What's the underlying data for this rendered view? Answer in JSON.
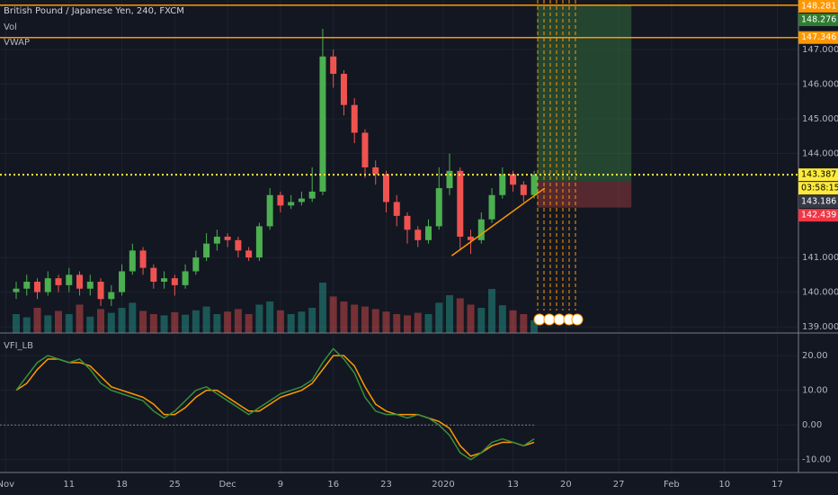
{
  "chart_data": {
    "type": "candlestick",
    "title": "British Pound / Japanese Yen, 240, FXCM",
    "overlays": [
      "Vol",
      "VWAP"
    ],
    "open": [
      140.0,
      140.1,
      140.3,
      140.0,
      140.4,
      140.2,
      140.5,
      140.1,
      140.3,
      139.8,
      140.0,
      140.6,
      141.2,
      140.7,
      140.3,
      140.4,
      140.2,
      140.6,
      141.0,
      141.4,
      141.6,
      141.5,
      141.2,
      141.0,
      141.9,
      142.8,
      142.5,
      142.6,
      142.7,
      142.9,
      146.8,
      146.3,
      145.4,
      144.6,
      143.6,
      143.4,
      142.6,
      142.2,
      141.8,
      141.5,
      141.9,
      143.0,
      143.5,
      141.6,
      141.5,
      142.1,
      142.8,
      143.4,
      143.1,
      142.8
    ],
    "high": [
      140.3,
      140.5,
      140.4,
      140.6,
      140.5,
      140.7,
      140.6,
      140.5,
      140.4,
      140.2,
      140.8,
      141.4,
      141.3,
      140.8,
      140.6,
      140.5,
      140.8,
      141.2,
      141.7,
      141.8,
      141.7,
      141.6,
      141.3,
      142.0,
      143.0,
      142.9,
      142.8,
      142.9,
      143.6,
      147.6,
      147.0,
      146.4,
      145.6,
      144.7,
      143.8,
      143.5,
      142.8,
      142.3,
      141.9,
      142.1,
      143.6,
      144.0,
      143.6,
      141.8,
      142.3,
      143.0,
      143.6,
      143.5,
      143.2,
      143.5
    ],
    "low": [
      139.8,
      139.9,
      139.8,
      139.9,
      140.0,
      140.0,
      139.9,
      139.9,
      139.6,
      139.6,
      139.9,
      140.5,
      140.5,
      140.1,
      140.1,
      139.9,
      140.1,
      140.5,
      140.9,
      141.2,
      141.3,
      141.0,
      140.9,
      140.9,
      141.8,
      142.3,
      142.4,
      142.5,
      142.6,
      142.8,
      145.9,
      145.1,
      144.3,
      143.3,
      143.1,
      142.3,
      141.9,
      141.4,
      141.3,
      141.4,
      141.8,
      142.8,
      141.2,
      141.1,
      141.4,
      142.0,
      142.7,
      142.9,
      142.6,
      142.7
    ],
    "close": [
      140.1,
      140.3,
      140.0,
      140.4,
      140.2,
      140.5,
      140.1,
      140.3,
      139.8,
      140.0,
      140.6,
      141.2,
      140.7,
      140.3,
      140.4,
      140.2,
      140.6,
      141.0,
      141.4,
      141.6,
      141.5,
      141.2,
      141.0,
      141.9,
      142.8,
      142.5,
      142.6,
      142.7,
      142.9,
      146.8,
      146.3,
      145.4,
      144.6,
      143.6,
      143.4,
      142.6,
      142.2,
      141.8,
      141.5,
      141.9,
      143.0,
      143.5,
      141.6,
      141.5,
      142.1,
      142.8,
      143.4,
      143.1,
      142.8,
      143.387
    ],
    "up_color": "#4caf50",
    "down_color": "#ef5350",
    "volume": [
      30,
      25,
      40,
      28,
      35,
      30,
      45,
      26,
      38,
      32,
      40,
      48,
      35,
      30,
      28,
      33,
      29,
      36,
      42,
      30,
      34,
      38,
      30,
      45,
      50,
      36,
      30,
      34,
      40,
      80,
      58,
      50,
      45,
      42,
      38,
      34,
      30,
      28,
      32,
      30,
      48,
      60,
      55,
      45,
      40,
      70,
      44,
      36,
      30,
      20
    ],
    "vlim": [
      0,
      100
    ],
    "ylim": [
      138.82,
      148.43
    ],
    "yticks": [
      {
        "value": 139,
        "label": "139.000"
      },
      {
        "value": 140,
        "label": "140.000"
      },
      {
        "value": 141,
        "label": "141.000"
      },
      {
        "value": 144,
        "label": "144.000"
      },
      {
        "value": 145,
        "label": "145.000"
      },
      {
        "value": 146,
        "label": "146.000"
      },
      {
        "value": 147,
        "label": "147.000"
      }
    ],
    "xlim": [
      -1.53,
      74.0
    ],
    "xticks": [
      {
        "value": -1,
        "label": "Nov"
      },
      {
        "value": 5,
        "label": "11"
      },
      {
        "value": 10,
        "label": "18"
      },
      {
        "value": 15,
        "label": "25"
      },
      {
        "value": 20,
        "label": "Dec"
      },
      {
        "value": 25,
        "label": "9"
      },
      {
        "value": 30,
        "label": "16"
      },
      {
        "value": 35,
        "label": "23"
      },
      {
        "value": 40.4,
        "label": "2020"
      },
      {
        "value": 47,
        "label": "13"
      },
      {
        "value": 52,
        "label": "20"
      },
      {
        "value": 57,
        "label": "27"
      },
      {
        "value": 62,
        "label": "Feb"
      },
      {
        "value": 67,
        "label": "10"
      },
      {
        "value": 72,
        "label": "17"
      }
    ],
    "grid": true,
    "levels": [
      {
        "value": 148.281,
        "color": "#ff9800",
        "style": "solid"
      },
      {
        "value": 147.346,
        "color": "#ff9800",
        "style": "solid"
      },
      {
        "value": 143.387,
        "color": "#ffeb3b",
        "style": "dotted"
      }
    ],
    "countdown": "03:58:15",
    "position": {
      "entry": 143.186,
      "target": 148.276,
      "stop": 142.439,
      "x_start": 49.3,
      "x_end": 58.2
    },
    "trendline": {
      "x": [
        41.2,
        50.0
      ],
      "y": [
        141.05,
        143.0
      ],
      "color": "#ff9800"
    },
    "vfi": {
      "title": "VFI_LB",
      "color": "#388e3c",
      "signal_color": "#ff9800",
      "values": [
        10,
        14,
        18,
        20,
        19,
        18,
        19,
        16,
        12,
        10,
        9,
        8,
        7,
        4,
        2,
        4,
        7,
        10,
        11,
        9,
        7,
        5,
        3,
        5,
        7,
        9,
        10,
        11,
        13,
        18,
        22,
        19,
        15,
        8,
        4,
        3,
        3,
        2,
        3,
        2,
        0,
        -3,
        -8,
        -10,
        -8,
        -5,
        -4,
        -5,
        -6,
        -4
      ],
      "signal": [
        10,
        12,
        16,
        19,
        19,
        18,
        18,
        17,
        14,
        11,
        10,
        9,
        8,
        6,
        3,
        3,
        5,
        8,
        10,
        10,
        8,
        6,
        4,
        4,
        6,
        8,
        9,
        10,
        12,
        16,
        20,
        20,
        17,
        11,
        6,
        4,
        3,
        3,
        3,
        2,
        1,
        -1,
        -6,
        -9,
        -8,
        -6,
        -5,
        -5,
        -6,
        -5
      ],
      "ylim": [
        -13.7,
        26
      ],
      "yticks": [
        {
          "value": -10,
          "label": "-10.00"
        },
        {
          "value": 0,
          "label": "0.00"
        },
        {
          "value": 10,
          "label": "10.00"
        },
        {
          "value": 20,
          "label": "20.00"
        }
      ],
      "zero_line": true
    }
  }
}
